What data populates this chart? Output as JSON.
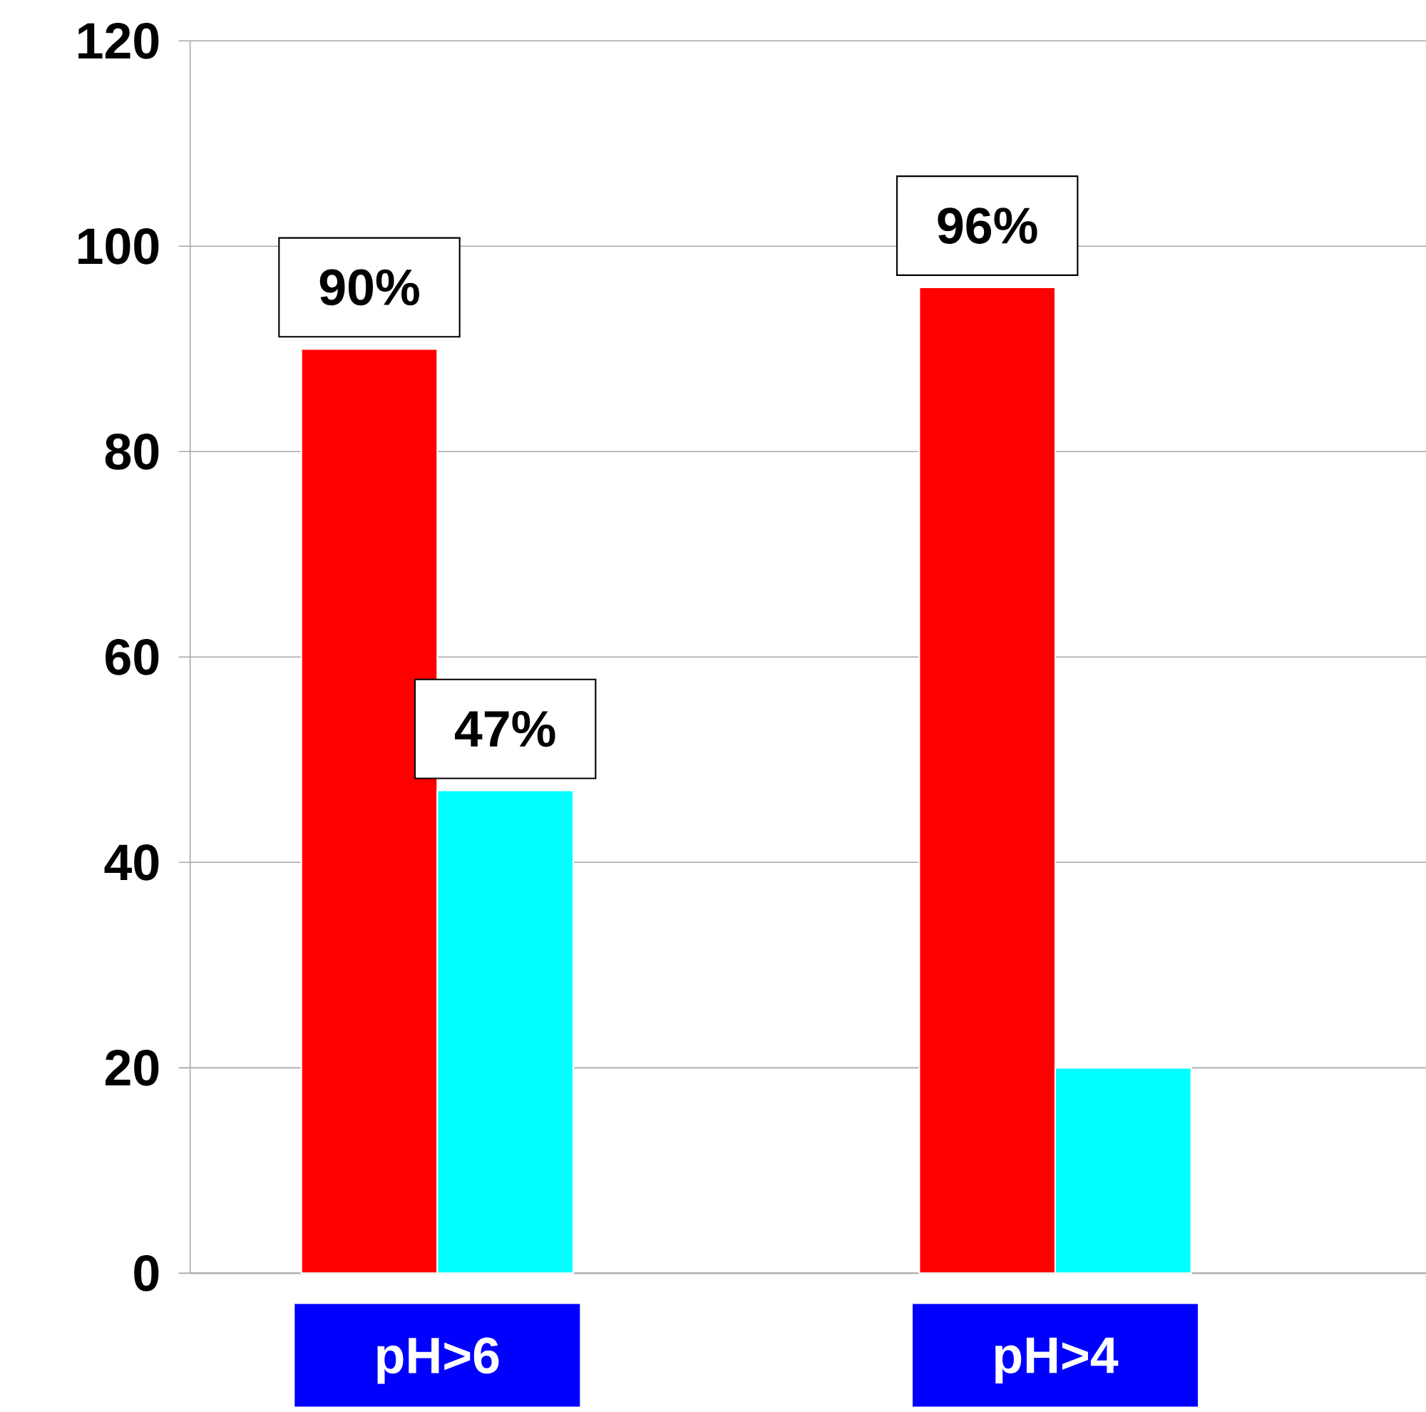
{
  "chart_data": {
    "type": "bar",
    "categories": [
      "pH>6",
      "pH>4"
    ],
    "series": [
      {
        "color": "#ff0000",
        "values": [
          90,
          96
        ],
        "value_labels": [
          "90%",
          "96%"
        ]
      },
      {
        "color": "#00ffff",
        "values": [
          47,
          20
        ],
        "value_labels": [
          "47%",
          null
        ]
      }
    ],
    "ylim": [
      0,
      120
    ],
    "yticks": [
      0,
      20,
      40,
      60,
      80,
      100,
      120
    ],
    "grid": "y"
  }
}
